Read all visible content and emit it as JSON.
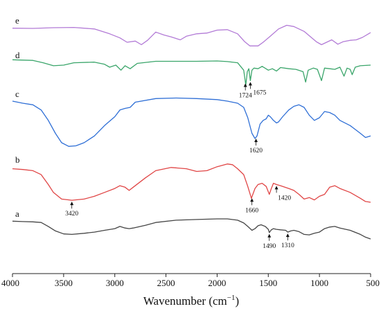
{
  "chart_data": {
    "type": "line",
    "title": "",
    "xlabel": "Wavenumber (cm",
    "xlabel_sup": "−1",
    "xlabel_close": ")",
    "ylabel": "",
    "xlim": [
      4000,
      500
    ],
    "x_reversed": true,
    "x_ticks": [
      4000,
      3500,
      3000,
      2500,
      2000,
      1500,
      1000,
      500
    ],
    "grid": false,
    "legend": "none",
    "series": [
      {
        "name": "e",
        "color": "#b27ad6",
        "points": [
          [
            4000,
            0.78
          ],
          [
            3800,
            0.77
          ],
          [
            3600,
            0.8
          ],
          [
            3400,
            0.81
          ],
          [
            3200,
            0.75
          ],
          [
            3050,
            0.55
          ],
          [
            2950,
            0.38
          ],
          [
            2880,
            0.2
          ],
          [
            2800,
            0.25
          ],
          [
            2740,
            0.1
          ],
          [
            2680,
            0.28
          ],
          [
            2600,
            0.62
          ],
          [
            2520,
            0.5
          ],
          [
            2450,
            0.42
          ],
          [
            2360,
            0.3
          ],
          [
            2300,
            0.45
          ],
          [
            2200,
            0.55
          ],
          [
            2100,
            0.58
          ],
          [
            2000,
            0.7
          ],
          [
            1900,
            0.72
          ],
          [
            1800,
            0.55
          ],
          [
            1730,
            0.22
          ],
          [
            1680,
            0.05
          ],
          [
            1600,
            0.05
          ],
          [
            1550,
            0.2
          ],
          [
            1480,
            0.45
          ],
          [
            1400,
            0.75
          ],
          [
            1320,
            0.9
          ],
          [
            1250,
            0.85
          ],
          [
            1150,
            0.65
          ],
          [
            1080,
            0.4
          ],
          [
            1030,
            0.22
          ],
          [
            980,
            0.1
          ],
          [
            930,
            0.2
          ],
          [
            880,
            0.3
          ],
          [
            820,
            0.12
          ],
          [
            770,
            0.22
          ],
          [
            700,
            0.28
          ],
          [
            640,
            0.3
          ],
          [
            580,
            0.4
          ],
          [
            520,
            0.55
          ],
          [
            500,
            0.6
          ]
        ]
      },
      {
        "name": "d",
        "color": "#3aa56a",
        "points": [
          [
            4000,
            0.9
          ],
          [
            3800,
            0.88
          ],
          [
            3700,
            0.8
          ],
          [
            3600,
            0.7
          ],
          [
            3500,
            0.72
          ],
          [
            3400,
            0.8
          ],
          [
            3200,
            0.82
          ],
          [
            3100,
            0.75
          ],
          [
            3050,
            0.65
          ],
          [
            2990,
            0.72
          ],
          [
            2940,
            0.55
          ],
          [
            2900,
            0.7
          ],
          [
            2850,
            0.6
          ],
          [
            2780,
            0.78
          ],
          [
            2600,
            0.85
          ],
          [
            2400,
            0.85
          ],
          [
            2200,
            0.85
          ],
          [
            2000,
            0.86
          ],
          [
            1900,
            0.84
          ],
          [
            1800,
            0.8
          ],
          [
            1740,
            0.55
          ],
          [
            1720,
            0.05
          ],
          [
            1705,
            0.5
          ],
          [
            1690,
            0.6
          ],
          [
            1675,
            0.2
          ],
          [
            1660,
            0.55
          ],
          [
            1640,
            0.62
          ],
          [
            1600,
            0.6
          ],
          [
            1560,
            0.68
          ],
          [
            1500,
            0.55
          ],
          [
            1460,
            0.6
          ],
          [
            1420,
            0.52
          ],
          [
            1380,
            0.64
          ],
          [
            1300,
            0.6
          ],
          [
            1230,
            0.58
          ],
          [
            1160,
            0.5
          ],
          [
            1135,
            0.15
          ],
          [
            1110,
            0.55
          ],
          [
            1060,
            0.62
          ],
          [
            1020,
            0.58
          ],
          [
            980,
            0.2
          ],
          [
            950,
            0.62
          ],
          [
            900,
            0.6
          ],
          [
            850,
            0.58
          ],
          [
            800,
            0.65
          ],
          [
            760,
            0.35
          ],
          [
            730,
            0.62
          ],
          [
            700,
            0.58
          ],
          [
            680,
            0.4
          ],
          [
            650,
            0.65
          ],
          [
            600,
            0.7
          ],
          [
            500,
            0.72
          ]
        ]
      },
      {
        "name": "c",
        "color": "#2f6fd6",
        "points": [
          [
            4000,
            0.92
          ],
          [
            3900,
            0.88
          ],
          [
            3800,
            0.85
          ],
          [
            3720,
            0.75
          ],
          [
            3650,
            0.55
          ],
          [
            3580,
            0.3
          ],
          [
            3520,
            0.12
          ],
          [
            3450,
            0.05
          ],
          [
            3380,
            0.06
          ],
          [
            3300,
            0.12
          ],
          [
            3200,
            0.25
          ],
          [
            3100,
            0.45
          ],
          [
            3000,
            0.62
          ],
          [
            2950,
            0.75
          ],
          [
            2900,
            0.78
          ],
          [
            2850,
            0.8
          ],
          [
            2800,
            0.9
          ],
          [
            2600,
            0.97
          ],
          [
            2400,
            0.98
          ],
          [
            2200,
            0.97
          ],
          [
            2000,
            0.95
          ],
          [
            1900,
            0.92
          ],
          [
            1800,
            0.88
          ],
          [
            1740,
            0.8
          ],
          [
            1700,
            0.6
          ],
          [
            1660,
            0.3
          ],
          [
            1630,
            0.2
          ],
          [
            1610,
            0.25
          ],
          [
            1580,
            0.48
          ],
          [
            1550,
            0.55
          ],
          [
            1520,
            0.58
          ],
          [
            1500,
            0.65
          ],
          [
            1480,
            0.62
          ],
          [
            1450,
            0.55
          ],
          [
            1420,
            0.5
          ],
          [
            1400,
            0.52
          ],
          [
            1360,
            0.62
          ],
          [
            1300,
            0.75
          ],
          [
            1250,
            0.82
          ],
          [
            1200,
            0.85
          ],
          [
            1150,
            0.8
          ],
          [
            1100,
            0.65
          ],
          [
            1050,
            0.55
          ],
          [
            1000,
            0.6
          ],
          [
            950,
            0.72
          ],
          [
            900,
            0.7
          ],
          [
            850,
            0.65
          ],
          [
            800,
            0.55
          ],
          [
            700,
            0.45
          ],
          [
            600,
            0.3
          ],
          [
            550,
            0.22
          ],
          [
            500,
            0.25
          ]
        ]
      },
      {
        "name": "b",
        "color": "#e04545",
        "points": [
          [
            4000,
            0.85
          ],
          [
            3900,
            0.83
          ],
          [
            3800,
            0.8
          ],
          [
            3720,
            0.7
          ],
          [
            3650,
            0.45
          ],
          [
            3600,
            0.25
          ],
          [
            3520,
            0.08
          ],
          [
            3420,
            0.05
          ],
          [
            3300,
            0.08
          ],
          [
            3200,
            0.15
          ],
          [
            3100,
            0.25
          ],
          [
            3000,
            0.35
          ],
          [
            2950,
            0.42
          ],
          [
            2900,
            0.38
          ],
          [
            2860,
            0.3
          ],
          [
            2820,
            0.38
          ],
          [
            2700,
            0.62
          ],
          [
            2600,
            0.8
          ],
          [
            2450,
            0.88
          ],
          [
            2300,
            0.85
          ],
          [
            2200,
            0.78
          ],
          [
            2100,
            0.8
          ],
          [
            2000,
            0.9
          ],
          [
            1900,
            0.97
          ],
          [
            1850,
            0.95
          ],
          [
            1800,
            0.85
          ],
          [
            1740,
            0.7
          ],
          [
            1700,
            0.4
          ],
          [
            1665,
            0.1
          ],
          [
            1630,
            0.35
          ],
          [
            1600,
            0.45
          ],
          [
            1560,
            0.48
          ],
          [
            1520,
            0.4
          ],
          [
            1490,
            0.2
          ],
          [
            1470,
            0.35
          ],
          [
            1450,
            0.48
          ],
          [
            1420,
            0.45
          ],
          [
            1380,
            0.42
          ],
          [
            1300,
            0.35
          ],
          [
            1250,
            0.3
          ],
          [
            1200,
            0.2
          ],
          [
            1150,
            0.08
          ],
          [
            1100,
            0.12
          ],
          [
            1050,
            0.06
          ],
          [
            1000,
            0.15
          ],
          [
            950,
            0.2
          ],
          [
            900,
            0.38
          ],
          [
            850,
            0.42
          ],
          [
            800,
            0.35
          ],
          [
            700,
            0.25
          ],
          [
            600,
            0.1
          ],
          [
            550,
            0.02
          ],
          [
            500,
            0.0
          ]
        ]
      },
      {
        "name": "a",
        "color": "#454545",
        "points": [
          [
            4000,
            0.78
          ],
          [
            3900,
            0.76
          ],
          [
            3800,
            0.75
          ],
          [
            3720,
            0.72
          ],
          [
            3650,
            0.55
          ],
          [
            3580,
            0.35
          ],
          [
            3500,
            0.22
          ],
          [
            3420,
            0.2
          ],
          [
            3300,
            0.25
          ],
          [
            3200,
            0.3
          ],
          [
            3100,
            0.38
          ],
          [
            3000,
            0.45
          ],
          [
            2950,
            0.55
          ],
          [
            2900,
            0.48
          ],
          [
            2860,
            0.45
          ],
          [
            2820,
            0.48
          ],
          [
            2700,
            0.6
          ],
          [
            2600,
            0.72
          ],
          [
            2400,
            0.82
          ],
          [
            2200,
            0.85
          ],
          [
            2000,
            0.88
          ],
          [
            1900,
            0.88
          ],
          [
            1800,
            0.82
          ],
          [
            1740,
            0.7
          ],
          [
            1700,
            0.55
          ],
          [
            1660,
            0.38
          ],
          [
            1630,
            0.45
          ],
          [
            1600,
            0.58
          ],
          [
            1570,
            0.62
          ],
          [
            1530,
            0.55
          ],
          [
            1500,
            0.42
          ],
          [
            1490,
            0.28
          ],
          [
            1470,
            0.4
          ],
          [
            1450,
            0.45
          ],
          [
            1420,
            0.42
          ],
          [
            1380,
            0.4
          ],
          [
            1330,
            0.38
          ],
          [
            1310,
            0.3
          ],
          [
            1280,
            0.35
          ],
          [
            1250,
            0.38
          ],
          [
            1200,
            0.32
          ],
          [
            1150,
            0.2
          ],
          [
            1100,
            0.18
          ],
          [
            1050,
            0.25
          ],
          [
            1000,
            0.3
          ],
          [
            950,
            0.45
          ],
          [
            900,
            0.52
          ],
          [
            850,
            0.55
          ],
          [
            800,
            0.48
          ],
          [
            700,
            0.38
          ],
          [
            600,
            0.2
          ],
          [
            550,
            0.08
          ],
          [
            500,
            0.0
          ]
        ]
      }
    ],
    "annotations": [
      {
        "series": "d",
        "x": 1724,
        "label": "1724"
      },
      {
        "series": "d",
        "x": 1675,
        "label": "1675"
      },
      {
        "series": "c",
        "x": 1620,
        "label": "1620"
      },
      {
        "series": "b",
        "x": 3420,
        "label": "3420"
      },
      {
        "series": "b",
        "x": 1660,
        "label": "1660"
      },
      {
        "series": "b",
        "x": 1420,
        "label": "1420"
      },
      {
        "series": "a",
        "x": 1490,
        "label": "1490"
      },
      {
        "series": "a",
        "x": 1310,
        "label": "1310"
      }
    ]
  }
}
